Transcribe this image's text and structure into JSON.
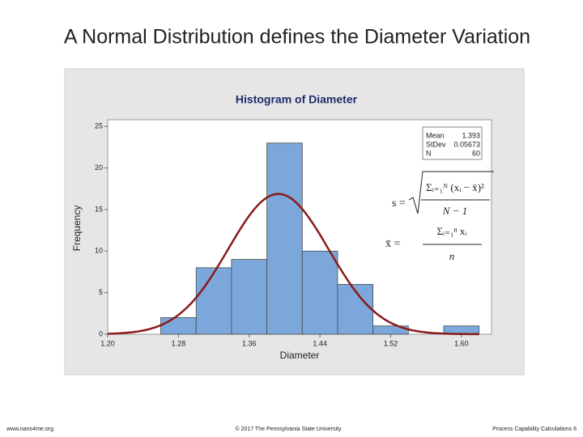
{
  "slide_title": "A Normal Distribution defines the Diameter Variation",
  "footer": {
    "left": "www.nano4me.org",
    "center": "© 2017 The Pennsylvania State University",
    "right": "Process Capability Calculations 6"
  },
  "chart_data": {
    "type": "histogram",
    "title": "Histogram of Diameter",
    "x_label": "Diameter",
    "y_label": "Frequency",
    "bins": [
      1.26,
      1.3,
      1.34,
      1.38,
      1.42,
      1.46,
      1.5,
      1.54,
      1.58,
      1.62
    ],
    "counts": [
      2,
      8,
      9,
      23,
      10,
      6,
      1,
      0,
      1
    ],
    "color": "#7ba7da",
    "fit_color": "#8b1a1a",
    "xlim": [
      1.2,
      1.634
    ],
    "ylim": [
      0,
      25.8
    ],
    "xticks": [
      {
        "value": 1.2,
        "label": "1.20"
      },
      1.28,
      1.36,
      1.44,
      1.52,
      {
        "value": 1.6,
        "label": "1.60"
      }
    ],
    "yticks": [
      0,
      5,
      10,
      15,
      20,
      25
    ],
    "stats": [
      {
        "label": "Mean",
        "value": 1.393
      },
      {
        "label": "StDev",
        "value": 0.05673
      },
      {
        "label": "N",
        "value": 60
      }
    ],
    "formulas": [
      {
        "lhs": "s =",
        "numerator": "Σᵢ₌₁ᴺ (xᵢ − x̄)²",
        "denominator": "N − 1"
      },
      {
        "lhs": "x̄ =",
        "numerator": "Σᵢ₌₁ⁿ xᵢ",
        "denominator": "n"
      }
    ]
  }
}
